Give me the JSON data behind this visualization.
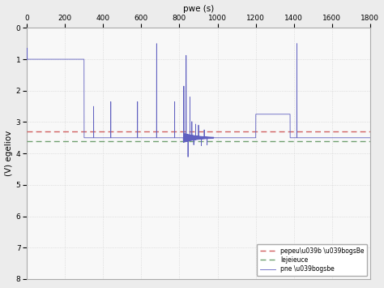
{
  "title": "pwe (s)",
  "ylabel": "(V) egeliov",
  "xlim": [
    0,
    1800
  ],
  "ylim": [
    8,
    0
  ],
  "xticks": [
    0,
    200,
    400,
    600,
    800,
    1000,
    1200,
    1400,
    1600,
    1800
  ],
  "yticks": [
    0,
    1,
    2,
    3,
    4,
    5,
    6,
    7,
    8
  ],
  "ref_level": 3.6,
  "labeled_level": 3.3,
  "nominal_level": 3.5,
  "high_level": 2.75,
  "low_level": 1.0,
  "legend_labels": [
    "pepeu\\u039b \\u039bogsBe",
    "lejeieuce",
    "pne \\u039bogsbe"
  ],
  "line_colors": [
    "#d06060",
    "#70a070",
    "#6060c0"
  ],
  "background_color": "#f8f8f8",
  "grid_color": "#d0d0d0",
  "fig_color": "#ececec"
}
